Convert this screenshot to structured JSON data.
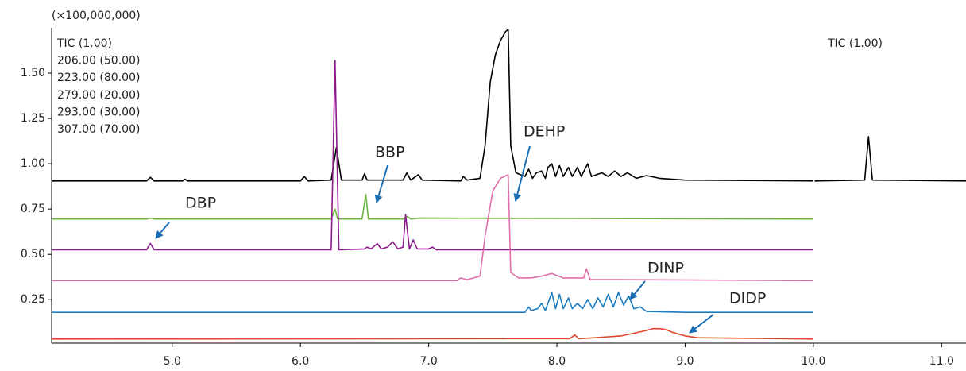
{
  "chart_data": {
    "type": "line",
    "unit_label": "(×100,000,000)",
    "right_label": "TIC (1.00)",
    "xlim": [
      4.06,
      11.19
    ],
    "ylim": [
      0.01,
      1.75
    ],
    "xticks": [
      {
        "value": 5,
        "label": "5.0"
      },
      {
        "value": 6,
        "label": "6.0"
      },
      {
        "value": 7,
        "label": "7.0"
      },
      {
        "value": 8,
        "label": "8.0"
      },
      {
        "value": 9,
        "label": "9.0"
      },
      {
        "value": 10,
        "label": "10.0"
      },
      {
        "value": 11,
        "label": "11.0"
      }
    ],
    "yticks": [
      0.25,
      {
        "value": 0.5,
        "label": "0.50"
      },
      0.75,
      {
        "value": 1,
        "label": "1.00"
      },
      1.25,
      {
        "value": 1.5,
        "label": "1.50"
      }
    ],
    "annotations": [
      {
        "text": "DBP"
      },
      {
        "text": "BBP"
      },
      {
        "text": "DEHP"
      },
      {
        "text": "DINP"
      },
      {
        "text": "DIDP"
      }
    ],
    "series": [
      {
        "name": "TIC (1.00)",
        "color": "#000000",
        "x": [
          4.06,
          4.8,
          4.83,
          4.86,
          5.08,
          5.1,
          5.12,
          6.0,
          6.03,
          6.06,
          6.24,
          6.28,
          6.32,
          6.48,
          6.5,
          6.52,
          6.8,
          6.83,
          6.86,
          6.92,
          6.95,
          7.25,
          7.27,
          7.3,
          7.4,
          7.44,
          7.48,
          7.52,
          7.56,
          7.6,
          7.62,
          7.64,
          7.68,
          7.75,
          7.78,
          7.81,
          7.84,
          7.88,
          7.91,
          7.93,
          7.96,
          7.99,
          8.02,
          8.05,
          8.09,
          8.12,
          8.16,
          8.19,
          8.24,
          8.27,
          8.35,
          8.4,
          8.45,
          8.5,
          8.55,
          8.62,
          8.7,
          8.8,
          9.0,
          10.0,
          10.005,
          10.01,
          10.4,
          10.43,
          10.46,
          11.19
        ],
        "values": [
          0.905,
          0.905,
          0.925,
          0.905,
          0.905,
          0.915,
          0.905,
          0.905,
          0.93,
          0.905,
          0.91,
          1.09,
          0.91,
          0.91,
          0.945,
          0.91,
          0.91,
          0.95,
          0.91,
          0.94,
          0.91,
          0.905,
          0.93,
          0.91,
          0.92,
          1.1,
          1.45,
          1.6,
          1.68,
          1.73,
          1.74,
          1.1,
          0.95,
          0.93,
          0.97,
          0.92,
          0.95,
          0.96,
          0.92,
          0.98,
          1.0,
          0.93,
          0.99,
          0.93,
          0.98,
          0.93,
          0.98,
          0.93,
          1.0,
          0.93,
          0.95,
          0.93,
          0.96,
          0.93,
          0.95,
          0.92,
          0.935,
          0.92,
          0.91,
          0.905,
          null,
          0.905,
          0.91,
          1.15,
          0.91,
          0.905
        ]
      },
      {
        "name": "206.00 (50.00)",
        "color": "#6db33f",
        "x": [
          4.06,
          4.8,
          4.83,
          4.86,
          6.24,
          6.27,
          6.29,
          6.48,
          6.51,
          6.53,
          6.8,
          6.83,
          6.86,
          6.93,
          10.0
        ],
        "values": [
          0.695,
          0.695,
          0.7,
          0.695,
          0.695,
          0.75,
          0.695,
          0.695,
          0.83,
          0.695,
          0.695,
          0.71,
          0.695,
          0.7,
          0.695
        ]
      },
      {
        "name": "223.00 (80.00)",
        "color": "#8b1a8b",
        "x": [
          4.06,
          4.8,
          4.83,
          4.86,
          6.24,
          6.27,
          6.3,
          6.5,
          6.52,
          6.55,
          6.6,
          6.63,
          6.68,
          6.72,
          6.76,
          6.8,
          6.82,
          6.85,
          6.88,
          6.91,
          7.0,
          7.03,
          7.06,
          10.0
        ],
        "values": [
          0.525,
          0.525,
          0.56,
          0.525,
          0.525,
          1.57,
          0.525,
          0.53,
          0.54,
          0.53,
          0.56,
          0.53,
          0.54,
          0.57,
          0.53,
          0.54,
          0.72,
          0.53,
          0.58,
          0.53,
          0.53,
          0.54,
          0.525,
          0.525
        ]
      },
      {
        "name": "279.00 (20.00)",
        "color": "#e06fa8",
        "x": [
          4.06,
          7.22,
          7.25,
          7.3,
          7.4,
          7.44,
          7.5,
          7.56,
          7.62,
          7.64,
          7.7,
          7.8,
          7.88,
          7.96,
          8.05,
          8.21,
          8.23,
          8.26,
          8.5,
          10.0
        ],
        "values": [
          0.355,
          0.355,
          0.37,
          0.36,
          0.38,
          0.6,
          0.85,
          0.92,
          0.94,
          0.4,
          0.37,
          0.37,
          0.38,
          0.395,
          0.37,
          0.37,
          0.42,
          0.36,
          0.36,
          0.355
        ]
      },
      {
        "name": "293.00 (30.00)",
        "color": "#1a7cc1",
        "x": [
          4.06,
          7.75,
          7.78,
          7.8,
          7.85,
          7.88,
          7.91,
          7.96,
          7.99,
          8.02,
          8.05,
          8.09,
          8.12,
          8.16,
          8.2,
          8.24,
          8.28,
          8.32,
          8.36,
          8.4,
          8.44,
          8.48,
          8.52,
          8.56,
          8.6,
          8.65,
          8.7,
          9.0,
          10.0
        ],
        "values": [
          0.18,
          0.18,
          0.21,
          0.19,
          0.2,
          0.23,
          0.19,
          0.29,
          0.2,
          0.28,
          0.2,
          0.26,
          0.2,
          0.23,
          0.2,
          0.25,
          0.2,
          0.26,
          0.21,
          0.28,
          0.21,
          0.29,
          0.22,
          0.27,
          0.2,
          0.21,
          0.185,
          0.18,
          0.18
        ]
      },
      {
        "name": "307.00 (70.00)",
        "color": "#e0442a",
        "x": [
          4.06,
          8.1,
          8.14,
          8.17,
          8.3,
          8.4,
          8.5,
          8.6,
          8.7,
          8.75,
          8.8,
          8.85,
          8.9,
          9.0,
          9.1,
          10.0
        ],
        "values": [
          0.033,
          0.035,
          0.055,
          0.035,
          0.04,
          0.045,
          0.05,
          0.065,
          0.08,
          0.09,
          0.09,
          0.085,
          0.07,
          0.05,
          0.04,
          0.033
        ]
      }
    ]
  }
}
